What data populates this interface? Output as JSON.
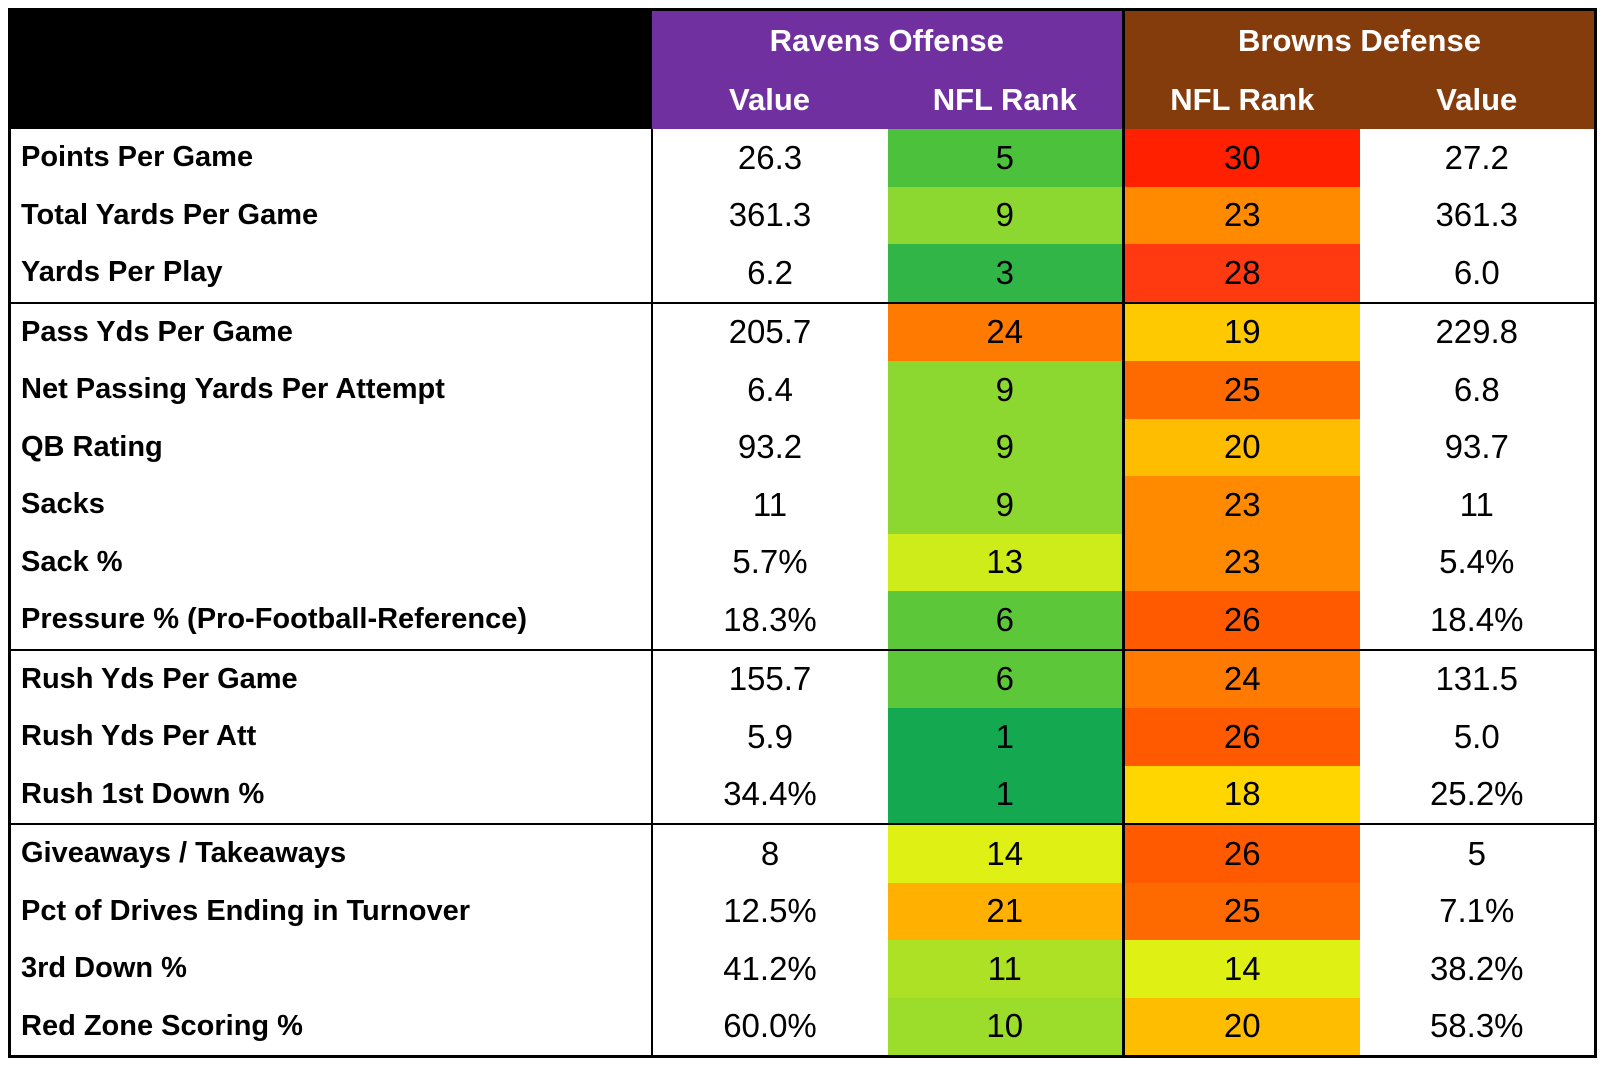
{
  "header": {
    "offense_title": "Ravens Offense",
    "defense_title": "Browns Defense",
    "columns": [
      "Value",
      "NFL Rank",
      "NFL Rank",
      "Value"
    ]
  },
  "table": {
    "groups": [
      {
        "rows": [
          {
            "label": "Points Per Game",
            "off_value": "26.3",
            "off_rank": 5,
            "def_rank": 30,
            "def_value": "27.2"
          },
          {
            "label": "Total Yards Per Game",
            "off_value": "361.3",
            "off_rank": 9,
            "def_rank": 23,
            "def_value": "361.3"
          },
          {
            "label": "Yards Per Play",
            "off_value": "6.2",
            "off_rank": 3,
            "def_rank": 28,
            "def_value": "6.0"
          }
        ]
      },
      {
        "rows": [
          {
            "label": "Pass Yds Per Game",
            "off_value": "205.7",
            "off_rank": 24,
            "def_rank": 19,
            "def_value": "229.8"
          },
          {
            "label": "Net Passing Yards Per Attempt",
            "off_value": "6.4",
            "off_rank": 9,
            "def_rank": 25,
            "def_value": "6.8"
          },
          {
            "label": "QB Rating",
            "off_value": "93.2",
            "off_rank": 9,
            "def_rank": 20,
            "def_value": "93.7"
          },
          {
            "label": "Sacks",
            "off_value": "11",
            "off_rank": 9,
            "def_rank": 23,
            "def_value": "11"
          },
          {
            "label": "Sack %",
            "off_value": "5.7%",
            "off_rank": 13,
            "def_rank": 23,
            "def_value": "5.4%"
          },
          {
            "label": "Pressure % (Pro-Football-Reference)",
            "off_value": "18.3%",
            "off_rank": 6,
            "def_rank": 26,
            "def_value": "18.4%"
          }
        ]
      },
      {
        "rows": [
          {
            "label": "Rush Yds Per Game",
            "off_value": "155.7",
            "off_rank": 6,
            "def_rank": 24,
            "def_value": "131.5"
          },
          {
            "label": "Rush Yds Per Att",
            "off_value": "5.9",
            "off_rank": 1,
            "def_rank": 26,
            "def_value": "5.0"
          },
          {
            "label": "Rush 1st Down %",
            "off_value": "34.4%",
            "off_rank": 1,
            "def_rank": 18,
            "def_value": "25.2%"
          }
        ]
      },
      {
        "rows": [
          {
            "label": "Giveaways / Takeaways",
            "off_value": "8",
            "off_rank": 14,
            "def_rank": 26,
            "def_value": "5"
          },
          {
            "label": "Pct of Drives Ending in Turnover",
            "off_value": "12.5%",
            "off_rank": 21,
            "def_rank": 25,
            "def_value": "7.1%"
          },
          {
            "label": "3rd Down %",
            "off_value": "41.2%",
            "off_rank": 11,
            "def_rank": 14,
            "def_value": "38.2%"
          },
          {
            "label": "Red Zone Scoring %",
            "off_value": "60.0%",
            "off_rank": 10,
            "def_rank": 20,
            "def_value": "58.3%"
          }
        ]
      }
    ]
  }
}
